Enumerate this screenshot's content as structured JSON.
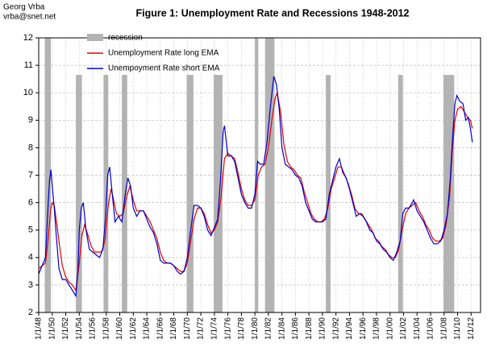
{
  "author": "Georg Vrba",
  "email": "vrba@snet.net",
  "chart_data": {
    "type": "line",
    "title": "Figure 1:  Unemployment Rate and Recessions  1948-2012",
    "legend": "top-left",
    "grid": true,
    "xlim": [
      1948,
      2013.4
    ],
    "ylim": [
      2,
      12
    ],
    "yticks": [
      2,
      3,
      4,
      5,
      6,
      7,
      8,
      9,
      10,
      11,
      12
    ],
    "xticks": [
      {
        "value": 1948,
        "label": "1/1/48"
      },
      {
        "value": 1950,
        "label": "1/1/50"
      },
      {
        "value": 1952,
        "label": "1/1/52"
      },
      {
        "value": 1954,
        "label": "1/1/54"
      },
      {
        "value": 1956,
        "label": "1/1/56"
      },
      {
        "value": 1958,
        "label": "1/1/58"
      },
      {
        "value": 1960,
        "label": "1/1/60"
      },
      {
        "value": 1962,
        "label": "1/1/62"
      },
      {
        "value": 1964,
        "label": "1/1/64"
      },
      {
        "value": 1966,
        "label": "1/1/66"
      },
      {
        "value": 1968,
        "label": "1/1/68"
      },
      {
        "value": 1970,
        "label": "1/1/70"
      },
      {
        "value": 1972,
        "label": "1/1/72"
      },
      {
        "value": 1974,
        "label": "1/1/74"
      },
      {
        "value": 1976,
        "label": "1/1/76"
      },
      {
        "value": 1978,
        "label": "1/1/78"
      },
      {
        "value": 1980,
        "label": "1/1/80"
      },
      {
        "value": 1982,
        "label": "1/1/82"
      },
      {
        "value": 1984,
        "label": "1/1/84"
      },
      {
        "value": 1986,
        "label": "1/1/86"
      },
      {
        "value": 1988,
        "label": "1/1/88"
      },
      {
        "value": 1990,
        "label": "1/1/90"
      },
      {
        "value": 1992,
        "label": "1/1/92"
      },
      {
        "value": 1994,
        "label": "1/1/94"
      },
      {
        "value": 1996,
        "label": "1/1/96"
      },
      {
        "value": 1998,
        "label": "1/1/98"
      },
      {
        "value": 2000,
        "label": "1/1/00"
      },
      {
        "value": 2002,
        "label": "1/1/02"
      },
      {
        "value": 2004,
        "label": "1/1/04"
      },
      {
        "value": 2006,
        "label": "1/1/06"
      },
      {
        "value": 2008,
        "label": "1/1/08"
      },
      {
        "value": 2010,
        "label": "1/1/10"
      },
      {
        "value": 2012,
        "label": "1/1/12"
      }
    ],
    "recessions": {
      "name": "recession",
      "color": "#b3b3b3",
      "start": [
        1948.9,
        1953.5,
        1957.6,
        1960.3,
        1969.9,
        1973.9,
        1980.0,
        1981.5,
        1990.5,
        2001.2,
        2007.9
      ],
      "end": [
        1949.8,
        1954.4,
        1958.3,
        1961.1,
        1970.9,
        1975.2,
        1980.5,
        1982.9,
        1991.2,
        2001.9,
        2009.5
      ],
      "values": [
        12,
        10.65,
        10.65,
        10.65,
        10.65,
        10.65,
        12,
        12,
        10.65,
        10.65,
        10.65
      ]
    },
    "series": [
      {
        "name": "Unemployment Rate long EMA",
        "color": "#e00000",
        "x": [
          1948.0,
          1948.5,
          1949.0,
          1949.4,
          1949.8,
          1950.0,
          1950.3,
          1950.7,
          1951.0,
          1951.5,
          1952.0,
          1952.5,
          1953.0,
          1953.5,
          1954.0,
          1954.4,
          1954.8,
          1955.3,
          1955.8,
          1956.3,
          1956.8,
          1957.3,
          1957.8,
          1958.3,
          1958.7,
          1959.0,
          1959.5,
          1960.0,
          1960.5,
          1961.0,
          1961.5,
          1962.0,
          1962.5,
          1963.0,
          1963.5,
          1964.0,
          1964.5,
          1965.0,
          1965.5,
          1966.0,
          1966.5,
          1967.0,
          1967.5,
          1968.0,
          1968.5,
          1969.0,
          1969.5,
          1970.0,
          1970.5,
          1971.0,
          1971.5,
          1972.0,
          1972.5,
          1973.0,
          1973.5,
          1974.0,
          1974.5,
          1975.0,
          1975.5,
          1976.0,
          1976.5,
          1977.0,
          1977.5,
          1978.0,
          1978.5,
          1979.0,
          1979.5,
          1980.0,
          1980.5,
          1981.0,
          1981.5,
          1982.0,
          1982.5,
          1983.0,
          1983.3,
          1983.8,
          1984.3,
          1984.8,
          1985.3,
          1985.8,
          1986.3,
          1986.8,
          1987.3,
          1987.8,
          1988.3,
          1988.8,
          1989.3,
          1989.8,
          1990.3,
          1990.8,
          1991.3,
          1991.8,
          1992.3,
          1992.8,
          1993.3,
          1993.8,
          1994.3,
          1994.8,
          1995.3,
          1995.8,
          1996.3,
          1996.8,
          1997.3,
          1997.8,
          1998.3,
          1998.8,
          1999.3,
          1999.8,
          2000.3,
          2000.8,
          2001.3,
          2001.8,
          2002.3,
          2002.8,
          2003.3,
          2003.8,
          2004.3,
          2004.8,
          2005.3,
          2005.8,
          2006.3,
          2006.8,
          2007.3,
          2007.8,
          2008.3,
          2008.8,
          2009.2,
          2009.6,
          2010.0,
          2010.5,
          2011.0,
          2011.5,
          2011.9,
          2012.2
        ],
        "values": [
          3.6,
          3.7,
          3.8,
          4.7,
          5.8,
          6.0,
          5.9,
          5.2,
          4.6,
          3.7,
          3.3,
          3.1,
          3.0,
          2.8,
          3.8,
          4.8,
          5.2,
          4.8,
          4.4,
          4.2,
          4.2,
          4.2,
          4.6,
          5.9,
          6.5,
          6.2,
          5.6,
          5.5,
          5.6,
          6.2,
          6.6,
          6.1,
          5.7,
          5.7,
          5.7,
          5.5,
          5.3,
          5.0,
          4.7,
          4.2,
          3.9,
          3.8,
          3.8,
          3.7,
          3.6,
          3.5,
          3.5,
          3.8,
          4.6,
          5.4,
          5.8,
          5.8,
          5.6,
          5.2,
          4.9,
          5.0,
          5.3,
          6.2,
          7.6,
          7.8,
          7.7,
          7.6,
          7.1,
          6.5,
          6.1,
          5.9,
          5.9,
          6.1,
          7.0,
          7.3,
          7.4,
          8.0,
          9.0,
          9.8,
          10.0,
          9.3,
          8.1,
          7.5,
          7.3,
          7.2,
          7.0,
          6.9,
          6.4,
          6.0,
          5.6,
          5.4,
          5.3,
          5.3,
          5.4,
          5.8,
          6.5,
          6.9,
          7.3,
          7.3,
          7.0,
          6.7,
          6.3,
          5.8,
          5.6,
          5.6,
          5.4,
          5.2,
          5.0,
          4.7,
          4.6,
          4.4,
          4.3,
          4.1,
          4.0,
          4.0,
          4.3,
          5.0,
          5.6,
          5.8,
          5.9,
          6.0,
          5.7,
          5.5,
          5.2,
          5.0,
          4.7,
          4.6,
          4.6,
          4.7,
          5.2,
          6.2,
          7.8,
          9.0,
          9.4,
          9.5,
          9.3,
          9.1,
          9.0,
          8.7
        ]
      },
      {
        "name": "Unempoyment Rate short EMA",
        "color": "#0000cc",
        "x": [
          1948.0,
          1948.5,
          1949.0,
          1949.3,
          1949.6,
          1949.8,
          1950.0,
          1950.3,
          1950.6,
          1951.0,
          1951.5,
          1952.0,
          1952.5,
          1953.0,
          1953.5,
          1953.8,
          1954.0,
          1954.3,
          1954.6,
          1955.0,
          1955.5,
          1956.0,
          1956.5,
          1957.0,
          1957.5,
          1957.9,
          1958.2,
          1958.5,
          1958.9,
          1959.3,
          1959.8,
          1960.3,
          1960.8,
          1961.2,
          1961.6,
          1962.0,
          1962.5,
          1963.0,
          1963.5,
          1964.0,
          1964.5,
          1965.0,
          1965.5,
          1966.0,
          1966.5,
          1967.0,
          1967.5,
          1968.0,
          1968.5,
          1969.0,
          1969.5,
          1970.0,
          1970.5,
          1971.0,
          1971.5,
          1972.0,
          1972.5,
          1973.0,
          1973.5,
          1974.0,
          1974.5,
          1974.9,
          1975.3,
          1975.5,
          1976.0,
          1976.5,
          1977.0,
          1977.5,
          1978.0,
          1978.5,
          1979.0,
          1979.5,
          1980.0,
          1980.4,
          1980.8,
          1981.3,
          1981.8,
          1982.3,
          1982.8,
          1983.2,
          1983.6,
          1984.0,
          1984.5,
          1985.0,
          1985.5,
          1986.0,
          1986.5,
          1987.0,
          1987.5,
          1988.0,
          1988.5,
          1989.0,
          1989.5,
          1990.0,
          1990.5,
          1991.0,
          1991.5,
          1992.0,
          1992.5,
          1993.0,
          1993.5,
          1994.0,
          1994.5,
          1995.0,
          1995.5,
          1996.0,
          1996.5,
          1997.0,
          1997.5,
          1998.0,
          1998.5,
          1999.0,
          1999.5,
          2000.0,
          2000.5,
          2001.0,
          2001.5,
          2001.9,
          2002.3,
          2002.8,
          2003.3,
          2003.5,
          2004.0,
          2004.5,
          2005.0,
          2005.5,
          2006.0,
          2006.5,
          2007.0,
          2007.5,
          2008.0,
          2008.5,
          2008.9,
          2009.3,
          2009.6,
          2009.9,
          2010.3,
          2010.8,
          2011.2,
          2011.6,
          2011.9,
          2012.2
        ],
        "values": [
          3.4,
          3.7,
          4.0,
          5.5,
          6.8,
          7.2,
          6.6,
          5.8,
          4.8,
          3.6,
          3.2,
          3.2,
          3.0,
          2.8,
          2.6,
          3.5,
          5.0,
          5.8,
          6.0,
          5.0,
          4.3,
          4.2,
          4.1,
          4.0,
          4.3,
          5.5,
          7.0,
          7.3,
          6.3,
          5.3,
          5.5,
          5.3,
          6.3,
          6.9,
          6.6,
          5.8,
          5.5,
          5.7,
          5.7,
          5.4,
          5.1,
          4.9,
          4.5,
          3.9,
          3.8,
          3.8,
          3.8,
          3.7,
          3.5,
          3.4,
          3.5,
          4.0,
          5.0,
          5.9,
          5.9,
          5.8,
          5.5,
          5.0,
          4.8,
          5.1,
          5.4,
          6.8,
          8.6,
          8.8,
          7.7,
          7.7,
          7.5,
          6.9,
          6.3,
          6.0,
          5.8,
          5.8,
          6.3,
          7.5,
          7.4,
          7.4,
          8.2,
          9.5,
          10.6,
          10.3,
          9.4,
          8.0,
          7.4,
          7.3,
          7.2,
          7.0,
          6.9,
          6.6,
          6.0,
          5.7,
          5.4,
          5.3,
          5.3,
          5.3,
          5.4,
          6.3,
          6.8,
          7.3,
          7.6,
          7.1,
          6.9,
          6.5,
          6.0,
          5.5,
          5.6,
          5.5,
          5.3,
          5.0,
          4.9,
          4.6,
          4.5,
          4.3,
          4.2,
          4.0,
          3.9,
          4.2,
          4.6,
          5.6,
          5.8,
          5.8,
          6.0,
          6.1,
          5.7,
          5.5,
          5.3,
          5.0,
          4.7,
          4.5,
          4.5,
          4.6,
          5.0,
          5.6,
          6.8,
          8.5,
          9.6,
          9.9,
          9.7,
          9.6,
          9.0,
          9.1,
          8.7,
          8.2
        ]
      }
    ]
  }
}
